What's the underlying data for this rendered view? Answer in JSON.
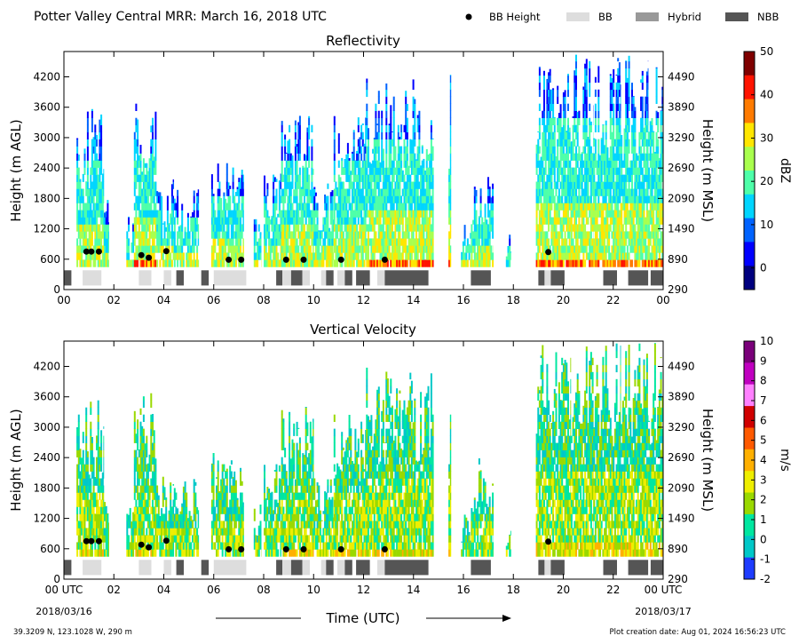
{
  "header": {
    "title": "Potter Valley Central MRR:  March 16, 2018 UTC"
  },
  "legend": [
    {
      "label": "BB Height",
      "kind": "dot",
      "color": "#000000"
    },
    {
      "label": "BB",
      "kind": "patch",
      "color": "#dddddd"
    },
    {
      "label": "Hybrid",
      "kind": "patch",
      "color": "#999999"
    },
    {
      "label": "NBB",
      "kind": "patch",
      "color": "#555555"
    }
  ],
  "chart_data": [
    {
      "type": "heatmap",
      "title": "Reflectivity",
      "ylabel": "Height (m AGL)",
      "ylabel_right": "Height (m MSL)",
      "colorbar_label": "dBZ",
      "colorbar_ticks": [
        "50",
        "40",
        "30",
        "20",
        "10",
        "0"
      ],
      "colorbar_range": [
        -5,
        50
      ],
      "x_ticks": [
        "00",
        "02",
        "04",
        "06",
        "08",
        "10",
        "12",
        "14",
        "16",
        "18",
        "20",
        "22",
        "00"
      ],
      "y_ticks": [
        "0",
        "600",
        "1200",
        "1800",
        "2400",
        "3000",
        "3600",
        "4200"
      ],
      "y2_ticks": [
        "290",
        "890",
        "1490",
        "2090",
        "2690",
        "3290",
        "3890",
        "4490"
      ],
      "xlim_hours": [
        0,
        24
      ],
      "ylim_m_agl": [
        0,
        4700
      ]
    },
    {
      "type": "heatmap",
      "title": "Vertical Velocity",
      "ylabel": "Height (m AGL)",
      "ylabel_right": "Height (m MSL)",
      "colorbar_label": "m/s",
      "colorbar_ticks": [
        "10",
        "9",
        "8",
        "7",
        "6",
        "5",
        "4",
        "3",
        "2",
        "1",
        "0",
        "-1",
        "-2"
      ],
      "colorbar_range": [
        -2,
        10
      ],
      "x_ticks": [
        "00 UTC",
        "02",
        "04",
        "06",
        "08",
        "10",
        "12",
        "14",
        "16",
        "18",
        "20",
        "22",
        "00 UTC"
      ],
      "y_ticks": [
        "0",
        "600",
        "1200",
        "1800",
        "2400",
        "3000",
        "3600",
        "4200"
      ],
      "y2_ticks": [
        "290",
        "890",
        "1490",
        "2090",
        "2690",
        "3290",
        "3890",
        "4490"
      ],
      "xlim_hours": [
        0,
        24
      ],
      "ylim_m_agl": [
        0,
        4700
      ]
    }
  ],
  "bb_heights": [
    {
      "hour": 0.9,
      "m": 750
    },
    {
      "hour": 1.1,
      "m": 750
    },
    {
      "hour": 1.4,
      "m": 750
    },
    {
      "hour": 3.1,
      "m": 680
    },
    {
      "hour": 3.4,
      "m": 630
    },
    {
      "hour": 4.1,
      "m": 760
    },
    {
      "hour": 6.6,
      "m": 590
    },
    {
      "hour": 7.1,
      "m": 590
    },
    {
      "hour": 8.9,
      "m": 590
    },
    {
      "hour": 9.6,
      "m": 590
    },
    {
      "hour": 11.1,
      "m": 590
    },
    {
      "hour": 12.85,
      "m": 590
    },
    {
      "hour": 19.4,
      "m": 740
    }
  ],
  "bb_classification": [
    {
      "start": 0.0,
      "end": 0.3,
      "class": "NBB"
    },
    {
      "start": 0.75,
      "end": 1.5,
      "class": "BB"
    },
    {
      "start": 3.0,
      "end": 3.5,
      "class": "BB"
    },
    {
      "start": 4.0,
      "end": 4.3,
      "class": "BB"
    },
    {
      "start": 4.5,
      "end": 4.8,
      "class": "NBB"
    },
    {
      "start": 5.5,
      "end": 5.8,
      "class": "NBB"
    },
    {
      "start": 6.0,
      "end": 7.3,
      "class": "BB"
    },
    {
      "start": 8.5,
      "end": 8.75,
      "class": "NBB"
    },
    {
      "start": 8.75,
      "end": 9.1,
      "class": "BB"
    },
    {
      "start": 9.1,
      "end": 9.55,
      "class": "NBB"
    },
    {
      "start": 9.55,
      "end": 9.85,
      "class": "BB"
    },
    {
      "start": 10.3,
      "end": 10.5,
      "class": "BB"
    },
    {
      "start": 10.5,
      "end": 10.8,
      "class": "NBB"
    },
    {
      "start": 10.95,
      "end": 11.25,
      "class": "BB"
    },
    {
      "start": 11.25,
      "end": 11.55,
      "class": "NBB"
    },
    {
      "start": 11.7,
      "end": 12.25,
      "class": "NBB"
    },
    {
      "start": 12.55,
      "end": 12.85,
      "class": "BB"
    },
    {
      "start": 12.85,
      "end": 14.6,
      "class": "NBB"
    },
    {
      "start": 16.3,
      "end": 17.1,
      "class": "NBB"
    },
    {
      "start": 19.0,
      "end": 19.25,
      "class": "NBB"
    },
    {
      "start": 19.25,
      "end": 19.5,
      "class": "BB"
    },
    {
      "start": 19.5,
      "end": 20.05,
      "class": "NBB"
    },
    {
      "start": 21.6,
      "end": 22.15,
      "class": "NBB"
    },
    {
      "start": 22.6,
      "end": 23.4,
      "class": "NBB"
    },
    {
      "start": 23.5,
      "end": 24.0,
      "class": "NBB"
    }
  ],
  "echo_periods": [
    {
      "start": 0.5,
      "end": 1.6,
      "top": 3600
    },
    {
      "start": 1.6,
      "end": 1.8,
      "top": 1800
    },
    {
      "start": 2.5,
      "end": 2.8,
      "top": 1500
    },
    {
      "start": 2.8,
      "end": 3.7,
      "top": 3800
    },
    {
      "start": 3.7,
      "end": 4.4,
      "top": 2200
    },
    {
      "start": 4.4,
      "end": 5.4,
      "top": 2000
    },
    {
      "start": 5.9,
      "end": 7.2,
      "top": 2500
    },
    {
      "start": 7.6,
      "end": 7.9,
      "top": 1500
    },
    {
      "start": 8.0,
      "end": 8.7,
      "top": 2400
    },
    {
      "start": 8.7,
      "end": 10.0,
      "top": 3500
    },
    {
      "start": 10.0,
      "end": 10.8,
      "top": 2100
    },
    {
      "start": 10.8,
      "end": 12.1,
      "top": 3500
    },
    {
      "start": 12.1,
      "end": 14.8,
      "top": 4200
    },
    {
      "start": 15.4,
      "end": 15.5,
      "top": 4300
    },
    {
      "start": 15.9,
      "end": 16.3,
      "top": 1300
    },
    {
      "start": 16.3,
      "end": 17.2,
      "top": 2400
    },
    {
      "start": 17.7,
      "end": 17.9,
      "top": 1100
    },
    {
      "start": 18.9,
      "end": 20.3,
      "top": 4700
    },
    {
      "start": 20.3,
      "end": 21.2,
      "top": 4700
    },
    {
      "start": 21.2,
      "end": 22.3,
      "top": 4700
    },
    {
      "start": 22.3,
      "end": 23.4,
      "top": 4700
    },
    {
      "start": 23.4,
      "end": 24.0,
      "top": 4700
    }
  ],
  "reflectivity_colormap": [
    "#00007f",
    "#0000ff",
    "#0063ff",
    "#00d5ff",
    "#4effa9",
    "#a9ff4e",
    "#ffe600",
    "#ff7b00",
    "#ff1400",
    "#7f0000"
  ],
  "velocity_colormap": [
    "#1e3cff",
    "#00c8c8",
    "#00e7a0",
    "#9ad900",
    "#eeee00",
    "#ffb000",
    "#ff5a00",
    "#d00000",
    "#ff80ff",
    "#c000c0",
    "#7a007a"
  ],
  "time_axis": {
    "xlabel": "Time (UTC)",
    "start_date": "2018/03/16",
    "end_date": "2018/03/17"
  },
  "footer": {
    "location": "39.3209 N, 123.1028 W, 290 m",
    "creation": "Plot creation date: Aug 01, 2024 16:56:23 UTC"
  }
}
